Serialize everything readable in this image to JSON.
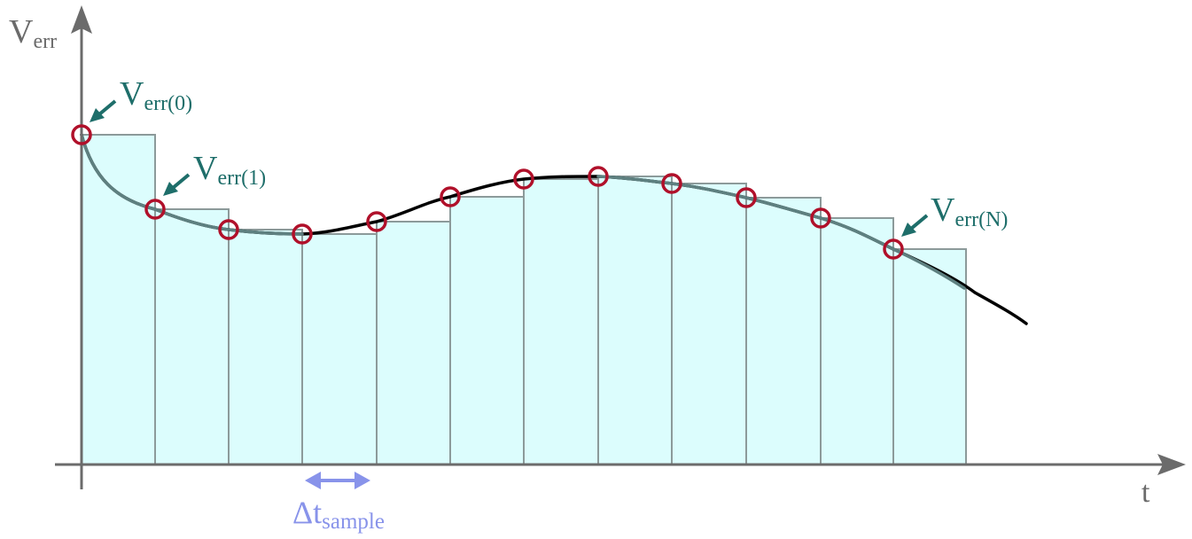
{
  "labels": {
    "y_axis_main": "V",
    "y_axis_sub": "err",
    "x_axis": "t",
    "sample_0_main": "V",
    "sample_0_sub": "err(0)",
    "sample_1_main": "V",
    "sample_1_sub": "err(1)",
    "sample_n_main": "V",
    "sample_n_sub": "err(N)",
    "delta_main": "Δt",
    "delta_sub": "sample"
  },
  "colors": {
    "axis": "#6b6b6b",
    "bar_fill": "#dcfdfd",
    "bar_stroke": "#8c9a9a",
    "curve": "#000000",
    "curve_overlay": "#5e8080",
    "sample_circle": "#b0102a",
    "annotation": "#1e6e6a",
    "delta": "#8893ea"
  }
}
